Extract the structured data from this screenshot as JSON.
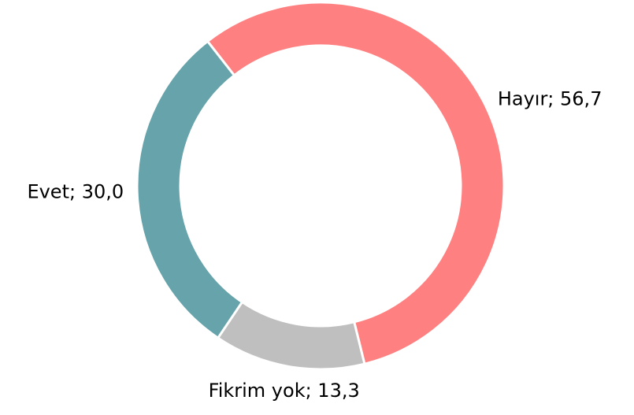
{
  "chart_data": {
    "type": "donut",
    "values": [
      56.7,
      13.3,
      30.0
    ],
    "value_labels": [
      "Hayır; 56,7",
      "Fikrim yok; 13,3",
      "Evet; 30,0"
    ],
    "colors": [
      "#ff8080",
      "#bfbfbf",
      "#66a3aa"
    ]
  }
}
